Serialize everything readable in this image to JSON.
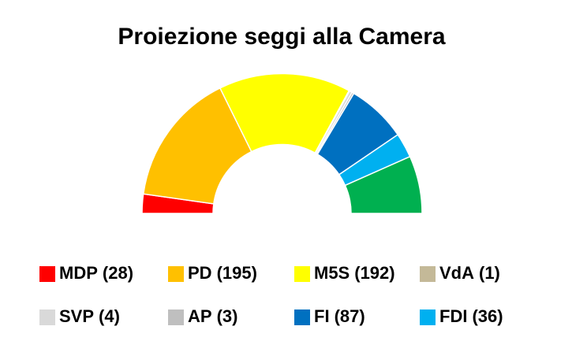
{
  "chart_data": {
    "type": "parliament",
    "title": "Proiezione seggi alla Camera",
    "categories": [
      "MDP",
      "PD",
      "M5S",
      "VdA",
      "SVP",
      "AP",
      "FI",
      "FDI",
      null
    ],
    "values": [
      28,
      195,
      192,
      1,
      4,
      3,
      87,
      36,
      84
    ],
    "value_labels": [
      "(28)",
      "(195)",
      "(192)",
      "(1)",
      "(4)",
      "(3)",
      "(87)",
      "(36)",
      null
    ],
    "colors": [
      "#ff0000",
      "#ffc000",
      "#ffff00",
      "#c4b998",
      "#d9d9d9",
      "#bfbfbf",
      "#0070c0",
      "#00b0f0",
      "#00b050"
    ]
  }
}
